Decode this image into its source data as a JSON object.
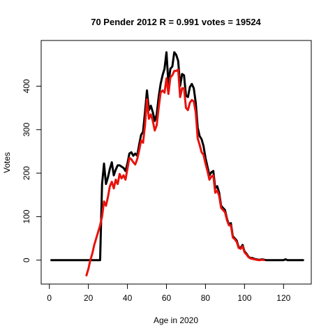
{
  "chart_data": {
    "type": "line",
    "title": "70 Pender 2012 R = 0.991 votes = 19524",
    "xlabel": "Age in 2020",
    "ylabel": "Votes",
    "xlim": [
      -4.2,
      134.2
    ],
    "ylim": [
      -55,
      505
    ],
    "xticks": [
      0,
      20,
      40,
      60,
      80,
      100,
      120
    ],
    "yticks": [
      0,
      100,
      200,
      300,
      400
    ],
    "grid": false,
    "legend": "none",
    "series": [
      {
        "color": "#000000",
        "points": [
          [
            1,
            0
          ],
          [
            2,
            0
          ],
          [
            3,
            0
          ],
          [
            4,
            0
          ],
          [
            5,
            0
          ],
          [
            6,
            0
          ],
          [
            7,
            0
          ],
          [
            8,
            0
          ],
          [
            9,
            0
          ],
          [
            10,
            0
          ],
          [
            11,
            0
          ],
          [
            12,
            0
          ],
          [
            13,
            0
          ],
          [
            14,
            0
          ],
          [
            15,
            0
          ],
          [
            16,
            0
          ],
          [
            17,
            0
          ],
          [
            18,
            0
          ],
          [
            19,
            0
          ],
          [
            20,
            0
          ],
          [
            21,
            0
          ],
          [
            22,
            0
          ],
          [
            23,
            0
          ],
          [
            24,
            0
          ],
          [
            25,
            0
          ],
          [
            26,
            0
          ],
          [
            27,
            175
          ],
          [
            28,
            222
          ],
          [
            29,
            175
          ],
          [
            30,
            190
          ],
          [
            31,
            210
          ],
          [
            32,
            225
          ],
          [
            33,
            195
          ],
          [
            34,
            208
          ],
          [
            35,
            218
          ],
          [
            36,
            218
          ],
          [
            37,
            215
          ],
          [
            38,
            212
          ],
          [
            39,
            205
          ],
          [
            40,
            222
          ],
          [
            41,
            245
          ],
          [
            42,
            248
          ],
          [
            43,
            240
          ],
          [
            44,
            245
          ],
          [
            45,
            240
          ],
          [
            46,
            265
          ],
          [
            47,
            288
          ],
          [
            48,
            295
          ],
          [
            49,
            340
          ],
          [
            50,
            390
          ],
          [
            51,
            345
          ],
          [
            52,
            355
          ],
          [
            53,
            340
          ],
          [
            54,
            320
          ],
          [
            55,
            335
          ],
          [
            56,
            375
          ],
          [
            57,
            405
          ],
          [
            58,
            425
          ],
          [
            59,
            440
          ],
          [
            60,
            478
          ],
          [
            61,
            405
          ],
          [
            62,
            440
          ],
          [
            63,
            445
          ],
          [
            64,
            478
          ],
          [
            65,
            472
          ],
          [
            66,
            458
          ],
          [
            67,
            400
          ],
          [
            68,
            428
          ],
          [
            69,
            425
          ],
          [
            70,
            378
          ],
          [
            71,
            375
          ],
          [
            72,
            398
          ],
          [
            73,
            405
          ],
          [
            74,
            395
          ],
          [
            75,
            362
          ],
          [
            76,
            305
          ],
          [
            77,
            285
          ],
          [
            78,
            278
          ],
          [
            79,
            262
          ],
          [
            80,
            235
          ],
          [
            81,
            215
          ],
          [
            82,
            195
          ],
          [
            83,
            202
          ],
          [
            84,
            205
          ],
          [
            85,
            165
          ],
          [
            86,
            170
          ],
          [
            87,
            155
          ],
          [
            88,
            125
          ],
          [
            89,
            120
          ],
          [
            90,
            115
          ],
          [
            91,
            95
          ],
          [
            92,
            82
          ],
          [
            93,
            85
          ],
          [
            94,
            55
          ],
          [
            95,
            50
          ],
          [
            96,
            45
          ],
          [
            97,
            30
          ],
          [
            98,
            28
          ],
          [
            99,
            35
          ],
          [
            100,
            20
          ],
          [
            101,
            15
          ],
          [
            102,
            8
          ],
          [
            103,
            5
          ],
          [
            104,
            5
          ],
          [
            105,
            3
          ],
          [
            106,
            2
          ],
          [
            107,
            1
          ],
          [
            108,
            1
          ],
          [
            109,
            2
          ],
          [
            110,
            1
          ],
          [
            111,
            0
          ],
          [
            112,
            0
          ],
          [
            113,
            0
          ],
          [
            114,
            0
          ],
          [
            115,
            0
          ],
          [
            116,
            0
          ],
          [
            117,
            0
          ],
          [
            118,
            0
          ],
          [
            119,
            0
          ],
          [
            120,
            0
          ],
          [
            121,
            2
          ],
          [
            122,
            0
          ],
          [
            123,
            0
          ],
          [
            124,
            0
          ],
          [
            125,
            0
          ],
          [
            126,
            0
          ],
          [
            127,
            0
          ],
          [
            128,
            0
          ],
          [
            129,
            0
          ],
          [
            130,
            0
          ]
        ]
      },
      {
        "color": "#e8120c",
        "points": [
          [
            19,
            -35
          ],
          [
            20,
            -20
          ],
          [
            21,
            0
          ],
          [
            22,
            15
          ],
          [
            23,
            35
          ],
          [
            24,
            50
          ],
          [
            25,
            65
          ],
          [
            26,
            80
          ],
          [
            27,
            100
          ],
          [
            28,
            135
          ],
          [
            29,
            125
          ],
          [
            30,
            145
          ],
          [
            31,
            170
          ],
          [
            32,
            180
          ],
          [
            33,
            165
          ],
          [
            34,
            185
          ],
          [
            35,
            175
          ],
          [
            36,
            198
          ],
          [
            37,
            188
          ],
          [
            38,
            195
          ],
          [
            39,
            185
          ],
          [
            40,
            210
          ],
          [
            41,
            235
          ],
          [
            42,
            232
          ],
          [
            43,
            225
          ],
          [
            44,
            220
          ],
          [
            45,
            232
          ],
          [
            46,
            252
          ],
          [
            47,
            275
          ],
          [
            48,
            270
          ],
          [
            49,
            310
          ],
          [
            50,
            370
          ],
          [
            51,
            325
          ],
          [
            52,
            335
          ],
          [
            53,
            320
          ],
          [
            54,
            298
          ],
          [
            55,
            310
          ],
          [
            56,
            350
          ],
          [
            57,
            385
          ],
          [
            58,
            390
          ],
          [
            59,
            385
          ],
          [
            60,
            418
          ],
          [
            61,
            382
          ],
          [
            62,
            420
          ],
          [
            63,
            425
          ],
          [
            64,
            435
          ],
          [
            65,
            435
          ],
          [
            66,
            438
          ],
          [
            67,
            375
          ],
          [
            68,
            395
          ],
          [
            69,
            395
          ],
          [
            70,
            350
          ],
          [
            71,
            345
          ],
          [
            72,
            362
          ],
          [
            73,
            368
          ],
          [
            74,
            365
          ],
          [
            75,
            340
          ],
          [
            76,
            280
          ],
          [
            77,
            265
          ],
          [
            78,
            248
          ],
          [
            79,
            242
          ],
          [
            80,
            222
          ],
          [
            81,
            205
          ],
          [
            82,
            185
          ],
          [
            83,
            192
          ],
          [
            84,
            195
          ],
          [
            85,
            155
          ],
          [
            86,
            160
          ],
          [
            87,
            148
          ],
          [
            88,
            120
          ],
          [
            89,
            115
          ],
          [
            90,
            110
          ],
          [
            91,
            92
          ],
          [
            92,
            80
          ],
          [
            93,
            80
          ],
          [
            94,
            52
          ],
          [
            95,
            48
          ],
          [
            96,
            42
          ],
          [
            97,
            28
          ],
          [
            98,
            26
          ],
          [
            99,
            32
          ],
          [
            100,
            18
          ],
          [
            101,
            13
          ],
          [
            102,
            7
          ],
          [
            103,
            4
          ],
          [
            104,
            3
          ],
          [
            105,
            2
          ],
          [
            106,
            1
          ],
          [
            107,
            0
          ],
          [
            108,
            0
          ],
          [
            109,
            1
          ],
          [
            110,
            0
          ]
        ]
      }
    ]
  }
}
